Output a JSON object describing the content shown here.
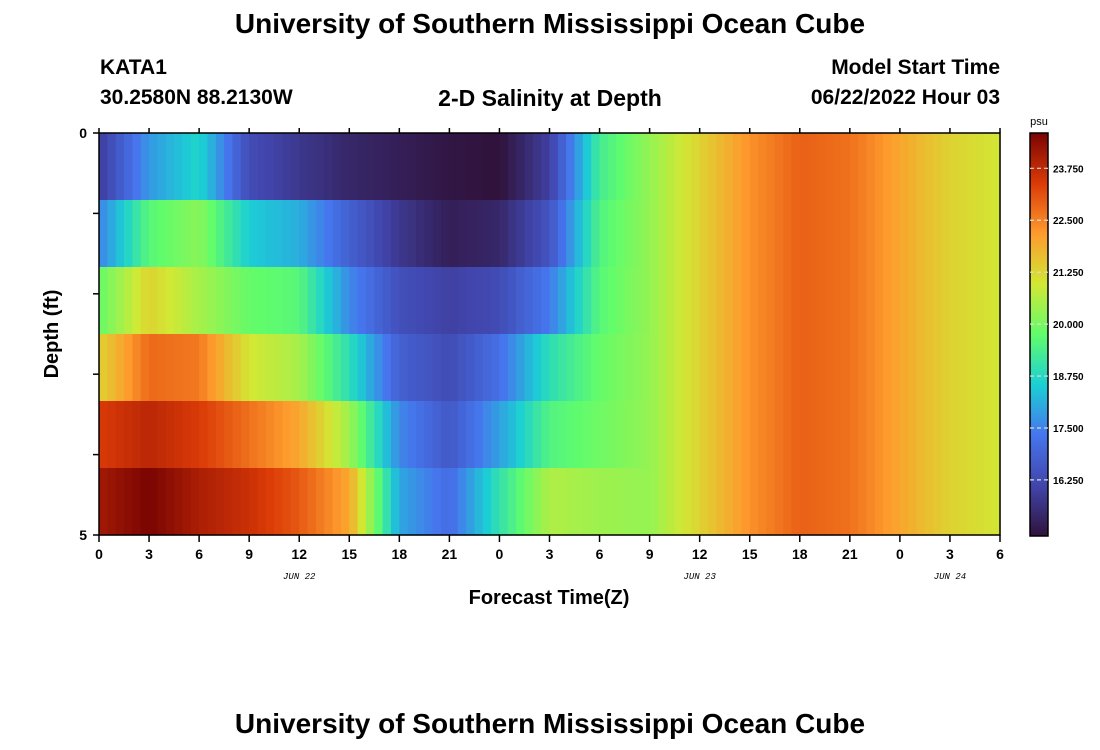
{
  "header": {
    "title": "University of Southern Mississippi Ocean Cube",
    "station": "KATA1",
    "coords": "30.2580N  88.2130W",
    "chart_title": "2-D Salinity at Depth",
    "model_start_label": "Model Start Time",
    "model_start_value": "06/22/2022 Hour 03"
  },
  "footer": {
    "title": "University of Southern Mississippi Ocean Cube"
  },
  "chart_data": {
    "type": "heatmap",
    "title": "2-D Salinity at Depth",
    "xlabel": "Forecast Time(Z)",
    "ylabel": "Depth (ft)",
    "x_hours": [
      0,
      3,
      6,
      9,
      12,
      15,
      18,
      21,
      24,
      27,
      30,
      33,
      36,
      39,
      42,
      45,
      48,
      51,
      54
    ],
    "x_tick_labels": [
      "0",
      "3",
      "6",
      "9",
      "12",
      "15",
      "18",
      "21",
      "0",
      "3",
      "6",
      "9",
      "12",
      "15",
      "18",
      "21",
      "0",
      "3",
      "6"
    ],
    "date_labels": [
      {
        "text": "JUN 22",
        "hour": 12
      },
      {
        "text": "JUN 23",
        "hour": 36
      },
      {
        "text": "JUN 24",
        "hour": 51
      }
    ],
    "y_range": [
      0,
      5
    ],
    "y_tick_labels": [
      "0",
      "5"
    ],
    "depth_layers": [
      0,
      1,
      2,
      3,
      4,
      5
    ],
    "salinity_profiles": [
      [
        [
          0,
          15.9
        ],
        [
          3,
          17.8
        ],
        [
          6,
          18.7
        ],
        [
          9,
          16.3
        ],
        [
          12,
          15.8
        ],
        [
          15,
          15.4
        ],
        [
          18,
          15.2
        ],
        [
          21,
          15.0
        ],
        [
          24,
          14.9
        ],
        [
          27,
          16.0
        ],
        [
          30,
          19.3
        ],
        [
          33,
          20.3
        ],
        [
          36,
          21.3
        ],
        [
          39,
          22.3
        ],
        [
          42,
          22.9
        ],
        [
          45,
          22.7
        ],
        [
          48,
          22.0
        ],
        [
          51,
          21.3
        ],
        [
          54,
          21.0
        ]
      ],
      [
        [
          0,
          17.5
        ],
        [
          3,
          19.6
        ],
        [
          6,
          20.2
        ],
        [
          9,
          18.5
        ],
        [
          12,
          18.1
        ],
        [
          15,
          16.8
        ],
        [
          18,
          15.8
        ],
        [
          21,
          15.2
        ],
        [
          24,
          15.4
        ],
        [
          27,
          16.5
        ],
        [
          30,
          19.5
        ],
        [
          33,
          20.3
        ],
        [
          36,
          21.3
        ],
        [
          39,
          22.3
        ],
        [
          42,
          22.9
        ],
        [
          45,
          22.7
        ],
        [
          48,
          22.0
        ],
        [
          51,
          21.3
        ],
        [
          54,
          21.0
        ]
      ],
      [
        [
          0,
          19.8
        ],
        [
          3,
          21.3
        ],
        [
          6,
          20.5
        ],
        [
          9,
          19.8
        ],
        [
          12,
          19.6
        ],
        [
          15,
          17.6
        ],
        [
          18,
          16.4
        ],
        [
          21,
          16.0
        ],
        [
          24,
          16.3
        ],
        [
          27,
          17.4
        ],
        [
          30,
          19.6
        ],
        [
          33,
          20.3
        ],
        [
          36,
          21.3
        ],
        [
          39,
          22.3
        ],
        [
          42,
          22.9
        ],
        [
          45,
          22.7
        ],
        [
          48,
          22.0
        ],
        [
          51,
          21.3
        ],
        [
          54,
          21.0
        ]
      ],
      [
        [
          0,
          21.3
        ],
        [
          3,
          22.8
        ],
        [
          6,
          22.6
        ],
        [
          9,
          21.0
        ],
        [
          12,
          20.5
        ],
        [
          15,
          18.9
        ],
        [
          18,
          16.8
        ],
        [
          21,
          16.3
        ],
        [
          24,
          17.2
        ],
        [
          27,
          18.9
        ],
        [
          30,
          19.8
        ],
        [
          33,
          20.3
        ],
        [
          36,
          21.3
        ],
        [
          39,
          22.3
        ],
        [
          42,
          22.9
        ],
        [
          45,
          22.7
        ],
        [
          48,
          22.0
        ],
        [
          51,
          21.3
        ],
        [
          54,
          21.0
        ]
      ],
      [
        [
          0,
          23.4
        ],
        [
          3,
          23.8
        ],
        [
          6,
          23.4
        ],
        [
          9,
          22.7
        ],
        [
          12,
          22.0
        ],
        [
          15,
          20.4
        ],
        [
          18,
          17.6
        ],
        [
          21,
          16.6
        ],
        [
          24,
          17.9
        ],
        [
          27,
          19.5
        ],
        [
          30,
          19.9
        ],
        [
          33,
          20.3
        ],
        [
          36,
          21.3
        ],
        [
          39,
          22.3
        ],
        [
          42,
          22.9
        ],
        [
          45,
          22.7
        ],
        [
          48,
          22.0
        ],
        [
          51,
          21.3
        ],
        [
          54,
          21.0
        ]
      ],
      [
        [
          0,
          24.1
        ],
        [
          3,
          24.6
        ],
        [
          6,
          24.0
        ],
        [
          9,
          23.6
        ],
        [
          12,
          23.0
        ],
        [
          15,
          22.0
        ],
        [
          18,
          18.0
        ],
        [
          21,
          17.1
        ],
        [
          24,
          19.0
        ],
        [
          27,
          20.6
        ],
        [
          30,
          20.4
        ],
        [
          33,
          20.3
        ],
        [
          36,
          21.3
        ],
        [
          39,
          22.3
        ],
        [
          42,
          22.9
        ],
        [
          45,
          22.7
        ],
        [
          48,
          22.0
        ],
        [
          51,
          21.3
        ],
        [
          54,
          21.0
        ]
      ]
    ],
    "colorbar": {
      "unit": "psu",
      "min": 14.9,
      "max": 24.6,
      "ticks": [
        "23.750",
        "22.500",
        "21.250",
        "20.000",
        "18.750",
        "17.500",
        "16.250"
      ],
      "tick_values": [
        23.75,
        22.5,
        21.25,
        20.0,
        18.75,
        17.5,
        16.25
      ],
      "colormap": [
        "#30123b",
        "#4145ab",
        "#4675ed",
        "#1bcfd4",
        "#61fc6c",
        "#d1e834",
        "#fe9b2d",
        "#db3a07",
        "#7a0403"
      ]
    }
  }
}
